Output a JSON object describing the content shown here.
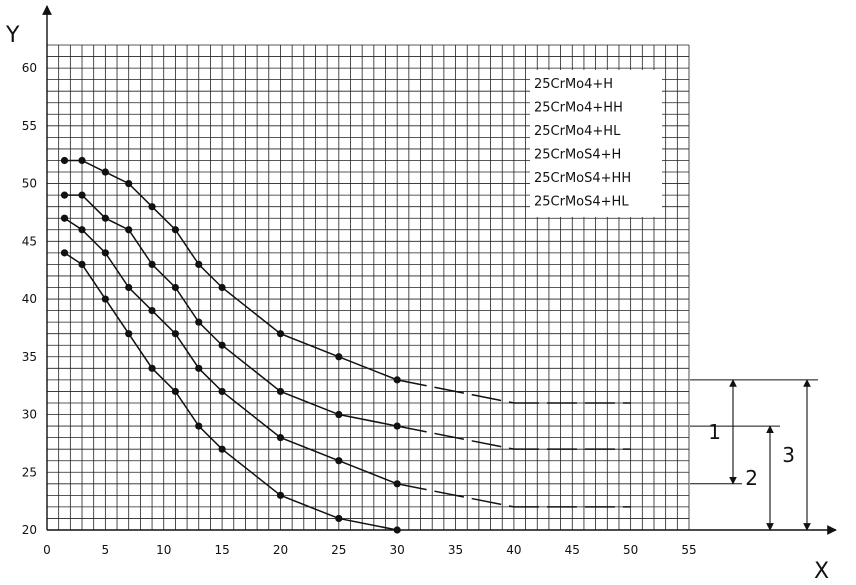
{
  "chart_data": {
    "type": "line",
    "xlabel": "X",
    "ylabel": "Y",
    "xlim": [
      0,
      55
    ],
    "ylim": [
      20,
      62
    ],
    "x_ticks": [
      0,
      5,
      10,
      15,
      20,
      25,
      30,
      35,
      40,
      45,
      50,
      55
    ],
    "y_ticks": [
      20,
      25,
      30,
      35,
      40,
      45,
      50,
      55,
      60
    ],
    "grid": true,
    "legend_position": "top-right",
    "legend": [
      "25CrMo4+H",
      "25CrMo4+HH",
      "25CrMo4+HL",
      "25CrMoS4+H",
      "25CrMoS4+HH",
      "25CrMoS4+HL"
    ],
    "series": [
      {
        "x": [
          1.5,
          3,
          5,
          7,
          9,
          11,
          13,
          15,
          20,
          25,
          30
        ],
        "y": [
          52,
          52,
          51,
          50,
          48,
          46,
          43,
          41,
          37,
          35,
          33
        ],
        "dashed_extension": [
          [
            30,
            33
          ],
          [
            40,
            31
          ],
          [
            50,
            31
          ]
        ]
      },
      {
        "x": [
          1.5,
          3,
          5,
          7,
          9,
          11,
          13,
          15,
          20,
          25,
          30
        ],
        "y": [
          49,
          49,
          47,
          46,
          43,
          41,
          38,
          36,
          32,
          30,
          29
        ],
        "dashed_extension": [
          [
            30,
            29
          ],
          [
            40,
            27
          ],
          [
            50,
            27
          ]
        ]
      },
      {
        "x": [
          1.5,
          3,
          5,
          7,
          9,
          11,
          13,
          15,
          20,
          25,
          30
        ],
        "y": [
          47,
          46,
          44,
          41,
          39,
          37,
          34,
          32,
          28,
          26,
          24
        ],
        "dashed_extension": [
          [
            30,
            24
          ],
          [
            40,
            22
          ],
          [
            50,
            22
          ]
        ]
      },
      {
        "x": [
          1.5,
          3,
          5,
          7,
          9,
          11,
          13,
          15,
          20,
          25,
          30
        ],
        "y": [
          44,
          43,
          40,
          37,
          34,
          32,
          29,
          27,
          23,
          21,
          20
        ],
        "dashed_extension": []
      }
    ],
    "annotations": [
      {
        "label": "1",
        "y_from": 24,
        "y_to": 33
      },
      {
        "label": "2",
        "y_from": 20,
        "y_to": 29
      },
      {
        "label": "3",
        "y_from": 20,
        "y_to": 33
      }
    ],
    "colors": {
      "line": "#111111",
      "grid": "#222222",
      "background": "#ffffff"
    }
  }
}
